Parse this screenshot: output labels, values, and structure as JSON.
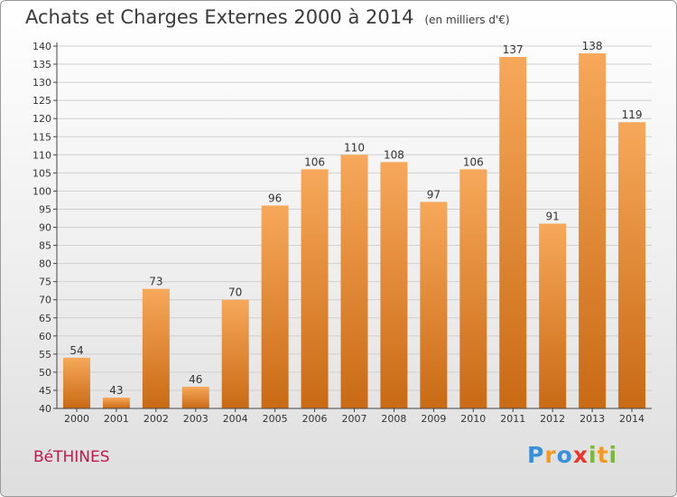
{
  "title": "Achats et Charges Externes 2000 à 2014",
  "unit": "(en milliers d'€)",
  "town": "BéTHINES",
  "logo": {
    "text": "Proxiti",
    "letters": [
      {
        "ch": "P",
        "color": "#3a8fd9"
      },
      {
        "ch": "r",
        "color": "#f29a1f"
      },
      {
        "ch": "o",
        "color": "#3a8fd9"
      },
      {
        "ch": "x",
        "color": "#e8362d"
      },
      {
        "ch": "i",
        "color": "#7ab83a"
      },
      {
        "ch": "t",
        "color": "#f29a1f"
      },
      {
        "ch": "i",
        "color": "#7ab83a"
      }
    ]
  },
  "chart_data": {
    "type": "bar",
    "categories": [
      "2000",
      "2001",
      "2002",
      "2003",
      "2004",
      "2005",
      "2006",
      "2007",
      "2008",
      "2009",
      "2010",
      "2011",
      "2012",
      "2013",
      "2014"
    ],
    "values": [
      54,
      43,
      73,
      46,
      70,
      96,
      106,
      110,
      108,
      97,
      106,
      137,
      91,
      138,
      119
    ],
    "ylim": [
      40,
      140
    ],
    "ytick_step": 5,
    "yticks": [
      40,
      45,
      50,
      55,
      60,
      65,
      70,
      75,
      80,
      85,
      90,
      95,
      100,
      105,
      110,
      115,
      120,
      125,
      130,
      135,
      140
    ],
    "grid": true,
    "data_labels": true,
    "colors": {
      "bar_top": "#f7a85a",
      "bar_bottom": "#c96a14",
      "grid": "#cfcfcf",
      "axis": "#444444"
    }
  }
}
